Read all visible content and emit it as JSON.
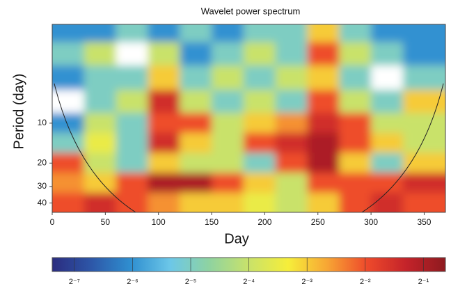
{
  "chart_data": {
    "type": "heatmap",
    "title": "Wavelet power spectrum",
    "xlabel": "Day",
    "ylabel": "Period (day)",
    "xlim": [
      0,
      370
    ],
    "xticks": [
      0,
      50,
      100,
      150,
      200,
      250,
      300,
      350
    ],
    "ylim": [
      1.8,
      47
    ],
    "yscale": "log",
    "yreversed": true,
    "yticks": [
      10,
      20,
      30,
      40
    ],
    "x": [
      15,
      45,
      75,
      105,
      135,
      165,
      195,
      225,
      255,
      285,
      315,
      345
    ],
    "y": [
      2,
      3,
      4.5,
      7,
      10,
      14,
      20,
      28,
      40
    ],
    "values": [
      [
        0.015625,
        0.015625,
        0.03125,
        0.015625,
        0.03125,
        0.015625,
        0.03125,
        0.03125,
        0.125,
        0.03125,
        0.015625,
        0.015625
      ],
      [
        0.03125,
        0.0625,
        0.004,
        0.0625,
        0.015625,
        0.03125,
        0.0625,
        0.03125,
        0.25,
        0.0625,
        0.03125,
        0.015625
      ],
      [
        0.015625,
        0.03125,
        0.03125,
        0.125,
        0.03125,
        0.0625,
        0.03125,
        0.0625,
        0.125,
        0.03125,
        0.004,
        0.03125
      ],
      [
        0.004,
        0.03125,
        0.0625,
        0.354,
        0.0625,
        0.03125,
        0.0625,
        0.03125,
        0.25,
        0.0625,
        0.03125,
        0.125
      ],
      [
        0.015625,
        0.0625,
        0.03125,
        0.25,
        0.25,
        0.0625,
        0.125,
        0.177,
        0.354,
        0.25,
        0.0625,
        0.0625
      ],
      [
        0.03125,
        0.088,
        0.03125,
        0.354,
        0.125,
        0.0625,
        0.25,
        0.354,
        0.5,
        0.25,
        0.125,
        0.0625
      ],
      [
        0.25,
        0.0625,
        0.03125,
        0.125,
        0.0625,
        0.0625,
        0.03125,
        0.25,
        0.5,
        0.125,
        0.03125,
        0.125
      ],
      [
        0.177,
        0.125,
        0.25,
        0.5,
        0.5,
        0.25,
        0.125,
        0.0625,
        0.25,
        0.25,
        0.25,
        0.354
      ],
      [
        0.25,
        0.354,
        0.25,
        0.177,
        0.125,
        0.125,
        0.088,
        0.0625,
        0.125,
        0.25,
        0.354,
        0.25
      ]
    ],
    "clim": [
      0.006,
      0.65
    ],
    "cscale": "log2",
    "colormap": [
      "#2b2c7f",
      "#2d57a8",
      "#2f8fd0",
      "#6cc7e8",
      "#8fd3a0",
      "#c9e26a",
      "#f6ee3a",
      "#f7a534",
      "#ee4a2b",
      "#c4232a",
      "#8e1a1f"
    ],
    "under_color": "#ffffff",
    "cticks": [
      {
        "value": 0.0078125,
        "label": "2⁻⁷"
      },
      {
        "value": 0.015625,
        "label": "2⁻⁶"
      },
      {
        "value": 0.03125,
        "label": "2⁻⁵"
      },
      {
        "value": 0.0625,
        "label": "2⁻⁴"
      },
      {
        "value": 0.125,
        "label": "2⁻³"
      },
      {
        "value": 0.25,
        "label": "2⁻²"
      },
      {
        "value": 0.5,
        "label": "2⁻¹"
      }
    ]
  }
}
